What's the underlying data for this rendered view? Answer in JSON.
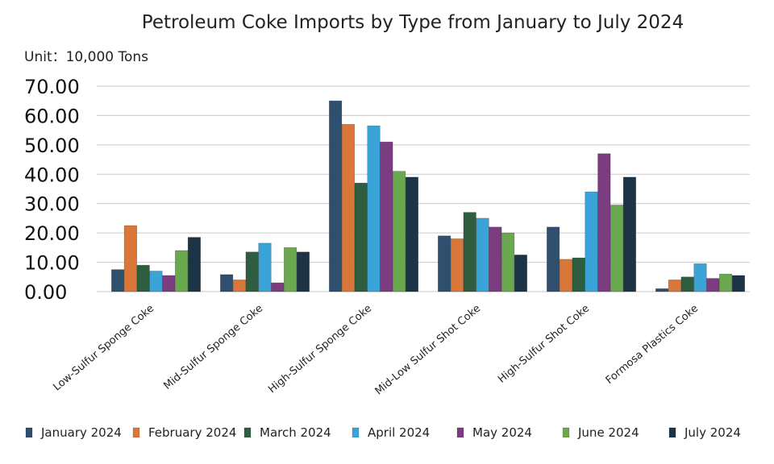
{
  "chart_data": {
    "type": "bar",
    "title": "Petroleum Coke Imports by Type from January to July 2024",
    "unit_label": "Unit：10,000 Tons",
    "xlabel": "",
    "ylabel": "",
    "ylim": [
      0,
      70
    ],
    "y_ticks": [
      "0.00",
      "10.00",
      "20.00",
      "30.00",
      "40.00",
      "50.00",
      "60.00",
      "70.00"
    ],
    "grid": true,
    "legend_position": "bottom",
    "categories": [
      "Low-Sulfur Sponge Coke",
      "Mid-Sulfur Sponge Coke",
      "High-Sulfur Sponge Coke",
      "Mid-Low Sulfur Shot Coke",
      "High-Sulfur Shot Coke",
      "Formosa Plastics Coke"
    ],
    "series": [
      {
        "name": "January 2024",
        "color": "#2e4f6e",
        "values": [
          7.5,
          5.8,
          65.0,
          19.0,
          22.0,
          1.0
        ]
      },
      {
        "name": "February 2024",
        "color": "#d9773a",
        "values": [
          22.5,
          4.0,
          57.0,
          18.0,
          11.0,
          4.0
        ]
      },
      {
        "name": "March 2024",
        "color": "#2e5e3f",
        "values": [
          9.0,
          13.5,
          37.0,
          27.0,
          11.5,
          5.0
        ]
      },
      {
        "name": "April 2024",
        "color": "#3aa3d8",
        "values": [
          7.0,
          16.5,
          56.5,
          25.0,
          34.0,
          9.5
        ]
      },
      {
        "name": "May 2024",
        "color": "#7b3d80",
        "values": [
          5.5,
          3.0,
          51.0,
          22.0,
          47.0,
          4.5
        ]
      },
      {
        "name": "June 2024",
        "color": "#6aa84f",
        "values": [
          14.0,
          15.0,
          41.0,
          20.0,
          29.5,
          6.0
        ]
      },
      {
        "name": "July 2024",
        "color": "#1d3346",
        "values": [
          18.5,
          13.5,
          39.0,
          12.5,
          39.0,
          5.5
        ]
      }
    ]
  }
}
